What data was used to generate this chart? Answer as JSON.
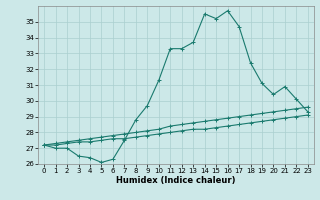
{
  "xlabel": "Humidex (Indice chaleur)",
  "bg_color": "#cce8e8",
  "line_color": "#1a7a6e",
  "grid_color": "#aacfcf",
  "x_values": [
    0,
    1,
    2,
    3,
    4,
    5,
    6,
    7,
    8,
    9,
    10,
    11,
    12,
    13,
    14,
    15,
    16,
    17,
    18,
    19,
    20,
    21,
    22,
    23
  ],
  "series1": [
    27.2,
    27.0,
    27.0,
    26.5,
    26.4,
    26.1,
    26.3,
    27.5,
    28.8,
    29.7,
    31.3,
    33.3,
    33.3,
    33.7,
    35.5,
    35.2,
    35.7,
    34.7,
    32.4,
    31.1,
    30.4,
    30.9,
    30.1,
    29.3
  ],
  "series2": [
    27.2,
    27.3,
    27.4,
    27.5,
    27.6,
    27.7,
    27.8,
    27.9,
    28.0,
    28.1,
    28.2,
    28.4,
    28.5,
    28.6,
    28.7,
    28.8,
    28.9,
    29.0,
    29.1,
    29.2,
    29.3,
    29.4,
    29.5,
    29.6
  ],
  "series3": [
    27.2,
    27.2,
    27.3,
    27.4,
    27.4,
    27.5,
    27.6,
    27.6,
    27.7,
    27.8,
    27.9,
    28.0,
    28.1,
    28.2,
    28.2,
    28.3,
    28.4,
    28.5,
    28.6,
    28.7,
    28.8,
    28.9,
    29.0,
    29.1
  ],
  "ylim": [
    26,
    36
  ],
  "xlim": [
    -0.5,
    23.5
  ],
  "yticks": [
    26,
    27,
    28,
    29,
    30,
    31,
    32,
    33,
    34,
    35
  ],
  "xticks": [
    0,
    1,
    2,
    3,
    4,
    5,
    6,
    7,
    8,
    9,
    10,
    11,
    12,
    13,
    14,
    15,
    16,
    17,
    18,
    19,
    20,
    21,
    22,
    23
  ],
  "xlabel_fontsize": 6,
  "tick_fontsize": 5
}
